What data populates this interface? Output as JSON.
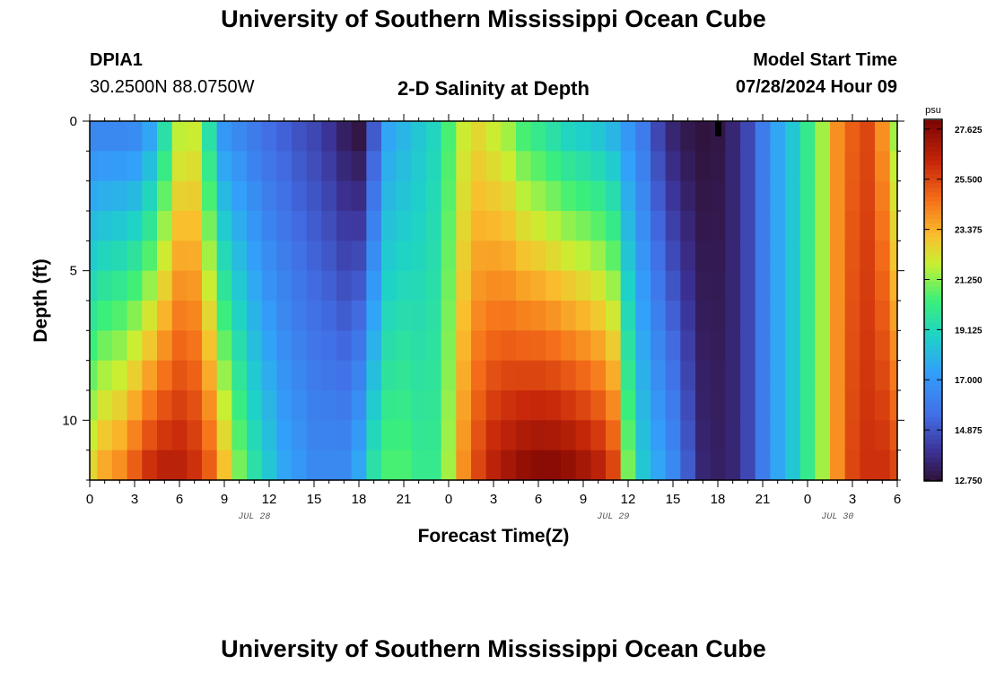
{
  "page": {
    "title_top": "University of Southern Mississippi Ocean Cube",
    "title_bottom": "University of Southern Mississippi Ocean Cube",
    "station_id": "DPIA1",
    "station_location": "30.2500N  88.0750W",
    "plot_title": "2-D Salinity at Depth",
    "model_start_label": "Model Start Time",
    "model_start_value": "07/28/2024 Hour 09"
  },
  "chart_data": {
    "type": "heatmap",
    "title": "2-D Salinity at Depth",
    "xlabel": "Forecast Time(Z)",
    "ylabel": "Depth (ft)",
    "x_ticks": [
      "0",
      "3",
      "6",
      "9",
      "12",
      "15",
      "18",
      "21",
      "0",
      "3",
      "6",
      "9",
      "12",
      "15",
      "18",
      "21",
      "0",
      "3",
      "6"
    ],
    "x_range_hours": [
      0,
      54
    ],
    "date_labels": [
      {
        "hour": 11,
        "text": "JUL 28"
      },
      {
        "hour": 35,
        "text": "JUL 29"
      },
      {
        "hour": 50,
        "text": "JUL 30"
      }
    ],
    "y_ticks": [
      "0",
      "5",
      "10"
    ],
    "ylim": [
      12,
      0
    ],
    "colorbar": {
      "unit": "psu",
      "ticks": [
        "27.625",
        "25.500",
        "23.375",
        "21.250",
        "19.125",
        "17.000",
        "14.875",
        "12.750"
      ],
      "range": [
        12.75,
        28.0
      ]
    },
    "depths_ft": [
      0.5,
      1.5,
      2.5,
      3.5,
      4.5,
      5.5,
      6.5,
      7.5,
      8.5,
      9.5,
      10.5,
      11.5
    ],
    "surface_salinity_by_hour": [
      16.5,
      16.5,
      16.5,
      16.6,
      17.5,
      19.5,
      21.8,
      22.0,
      19.5,
      17.0,
      16.5,
      16.0,
      15.5,
      15.2,
      14.8,
      14.5,
      14.0,
      13.3,
      12.9,
      15.0,
      17.5,
      18.0,
      18.5,
      19.0,
      20.5,
      22.0,
      22.5,
      22.0,
      21.5,
      20.5,
      20.0,
      19.5,
      19.0,
      18.8,
      18.5,
      18.0,
      17.0,
      16.0,
      14.5,
      13.5,
      13.0,
      12.8,
      12.9,
      13.5,
      14.5,
      16.0,
      17.5,
      18.5,
      20.0,
      21.5,
      24.0,
      25.0,
      25.5,
      24.0,
      21.5
    ],
    "bottom_salinity_by_hour": [
      22.5,
      23.5,
      24.0,
      25.0,
      26.0,
      26.5,
      26.5,
      26.0,
      25.0,
      23.0,
      21.0,
      19.5,
      18.5,
      17.5,
      17.0,
      16.5,
      16.5,
      16.5,
      17.5,
      19.5,
      20.5,
      20.5,
      20.0,
      20.0,
      21.5,
      24.0,
      25.5,
      26.5,
      27.0,
      27.4,
      27.6,
      27.6,
      27.4,
      27.0,
      26.5,
      25.5,
      21.0,
      18.5,
      17.5,
      16.5,
      15.0,
      13.5,
      13.3,
      13.5,
      14.5,
      16.0,
      17.5,
      18.5,
      20.0,
      21.5,
      24.0,
      25.5,
      26.0,
      26.0,
      25.5
    ]
  }
}
